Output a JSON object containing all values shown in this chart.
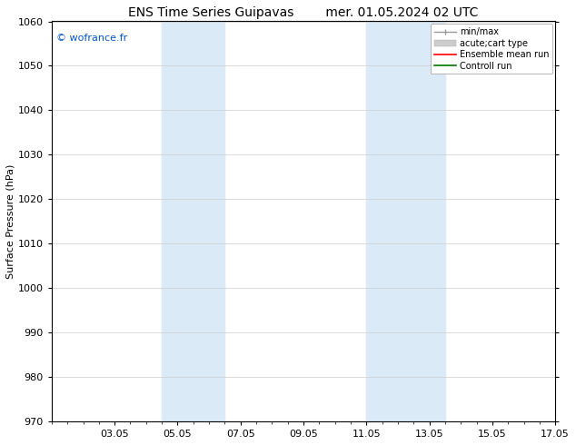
{
  "title_left": "ENS Time Series Guipavas",
  "title_right": "mer. 01.05.2024 02 UTC",
  "ylabel": "Surface Pressure (hPa)",
  "ylim": [
    970,
    1060
  ],
  "yticks": [
    970,
    980,
    990,
    1000,
    1010,
    1020,
    1030,
    1040,
    1050,
    1060
  ],
  "xlim": [
    0,
    16
  ],
  "xticks_labels": [
    "03.05",
    "05.05",
    "07.05",
    "09.05",
    "11.05",
    "13.05",
    "15.05",
    "17.05"
  ],
  "xticks_positions": [
    2,
    4,
    6,
    8,
    10,
    12,
    14,
    16
  ],
  "background_color": "#ffffff",
  "plot_bg_color": "#ffffff",
  "shaded_regions": [
    {
      "xmin": 3.5,
      "xmax": 5.5,
      "color": "#daeaf7"
    },
    {
      "xmin": 10.0,
      "xmax": 12.5,
      "color": "#daeaf7"
    }
  ],
  "watermark": "© wofrance.fr",
  "watermark_color": "#0055cc",
  "grid_color": "#cccccc",
  "tick_label_fontsize": 8,
  "title_fontsize": 10,
  "ylabel_fontsize": 8,
  "legend_fontsize": 7
}
